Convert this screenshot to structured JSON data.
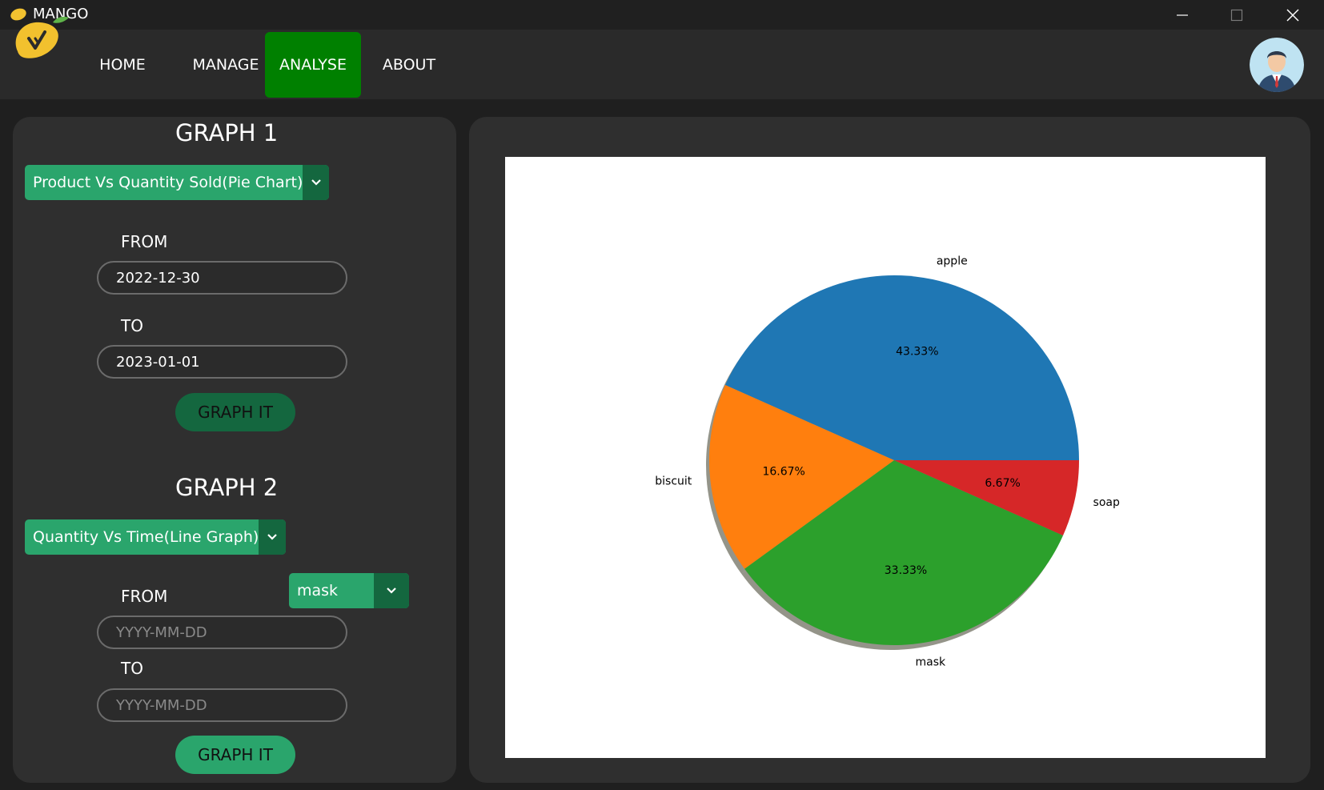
{
  "window": {
    "title": "MANGO"
  },
  "nav": {
    "items": [
      "HOME",
      "MANAGE",
      "ANALYSE",
      "ABOUT"
    ],
    "active": "ANALYSE"
  },
  "graph1": {
    "heading": "GRAPH 1",
    "select_value": "Product Vs Quantity Sold(Pie Chart)",
    "from_label": "FROM",
    "from_value": "2022-12-30",
    "to_label": "TO",
    "to_value": "2023-01-01",
    "button_label": "GRAPH IT"
  },
  "graph2": {
    "heading": "GRAPH 2",
    "select_value": "Quantity Vs Time(Line Graph)",
    "product_select_value": "mask",
    "from_label": "FROM",
    "from_placeholder": "YYYY-MM-DD",
    "to_label": "TO",
    "to_placeholder": "YYYY-MM-DD",
    "button_label": "GRAPH IT"
  },
  "colors": {
    "accent_green": "#2aa56c",
    "dark_green": "#14673f",
    "active_nav": "#008000"
  },
  "chart_data": {
    "type": "pie",
    "labels": [
      "apple",
      "biscuit",
      "mask",
      "soap"
    ],
    "values": [
      43.33,
      16.67,
      33.33,
      6.67
    ],
    "pct_labels": [
      "43.33%",
      "16.67%",
      "33.33%",
      "6.67%"
    ],
    "colors": [
      "#1f77b4",
      "#ff7f0e",
      "#2ca02c",
      "#d62728"
    ],
    "shadow": true
  }
}
